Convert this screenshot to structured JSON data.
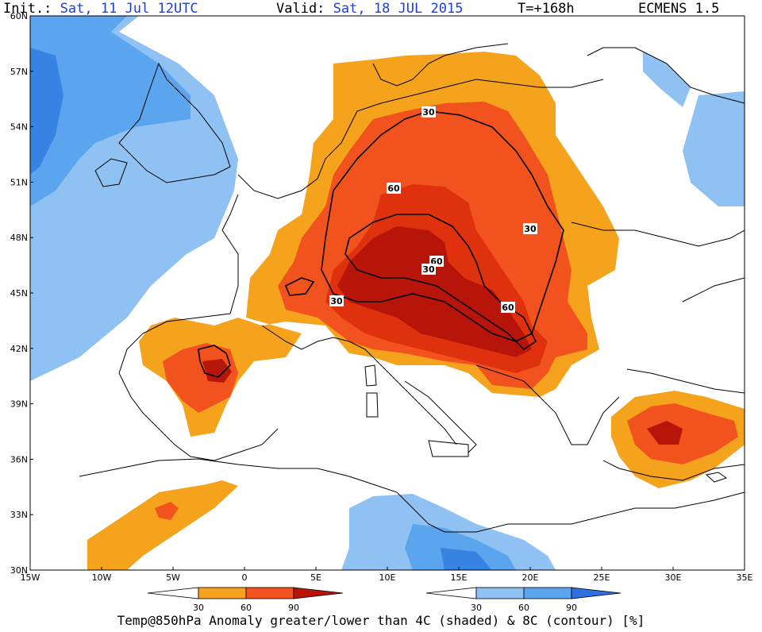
{
  "header": {
    "init_label": "Init.:",
    "init_value": "Sat, 11 Jul 12UTC",
    "valid_label": "Valid:",
    "valid_value": "Sat, 18 JUL 2015",
    "lead_time": "T=+168h",
    "model": "ECMENS 1.5"
  },
  "map": {
    "lon_range": [
      -15,
      35
    ],
    "lat_range": [
      30,
      60
    ],
    "lat_labels": [
      "60N",
      "57N",
      "54N",
      "51N",
      "48N",
      "45N",
      "42N",
      "39N",
      "36N",
      "33N",
      "30N"
    ],
    "lon_labels": [
      "15W",
      "10W",
      "5W",
      "0",
      "5E",
      "10E",
      "15E",
      "20E",
      "25E",
      "30E",
      "35E"
    ],
    "contour_labels": [
      "30",
      "60",
      "30",
      "60",
      "30",
      "30",
      "60"
    ]
  },
  "colorbars": {
    "warm": {
      "labels": [
        "30",
        "60",
        "90"
      ],
      "colors": [
        "#ffffff",
        "#f5a21c",
        "#f2531e",
        "#e0310e",
        "#b8150a"
      ]
    },
    "cold": {
      "labels": [
        "30",
        "60",
        "90"
      ],
      "colors": [
        "#ffffff",
        "#8fc2f2",
        "#5ba4ee",
        "#3783e4",
        "#1f5fd8"
      ]
    }
  },
  "colors": {
    "warm_30": "#f5a21c",
    "warm_60": "#f2531e",
    "warm_80": "#e0310e",
    "warm_90": "#b8150a",
    "cold_30": "#8fc2f2",
    "cold_60": "#5ba4ee",
    "cold_90": "#3783e4"
  },
  "footer": "Temp@850hPa Anomaly greater/lower than 4C (shaded) & 8C (contour) [%]"
}
